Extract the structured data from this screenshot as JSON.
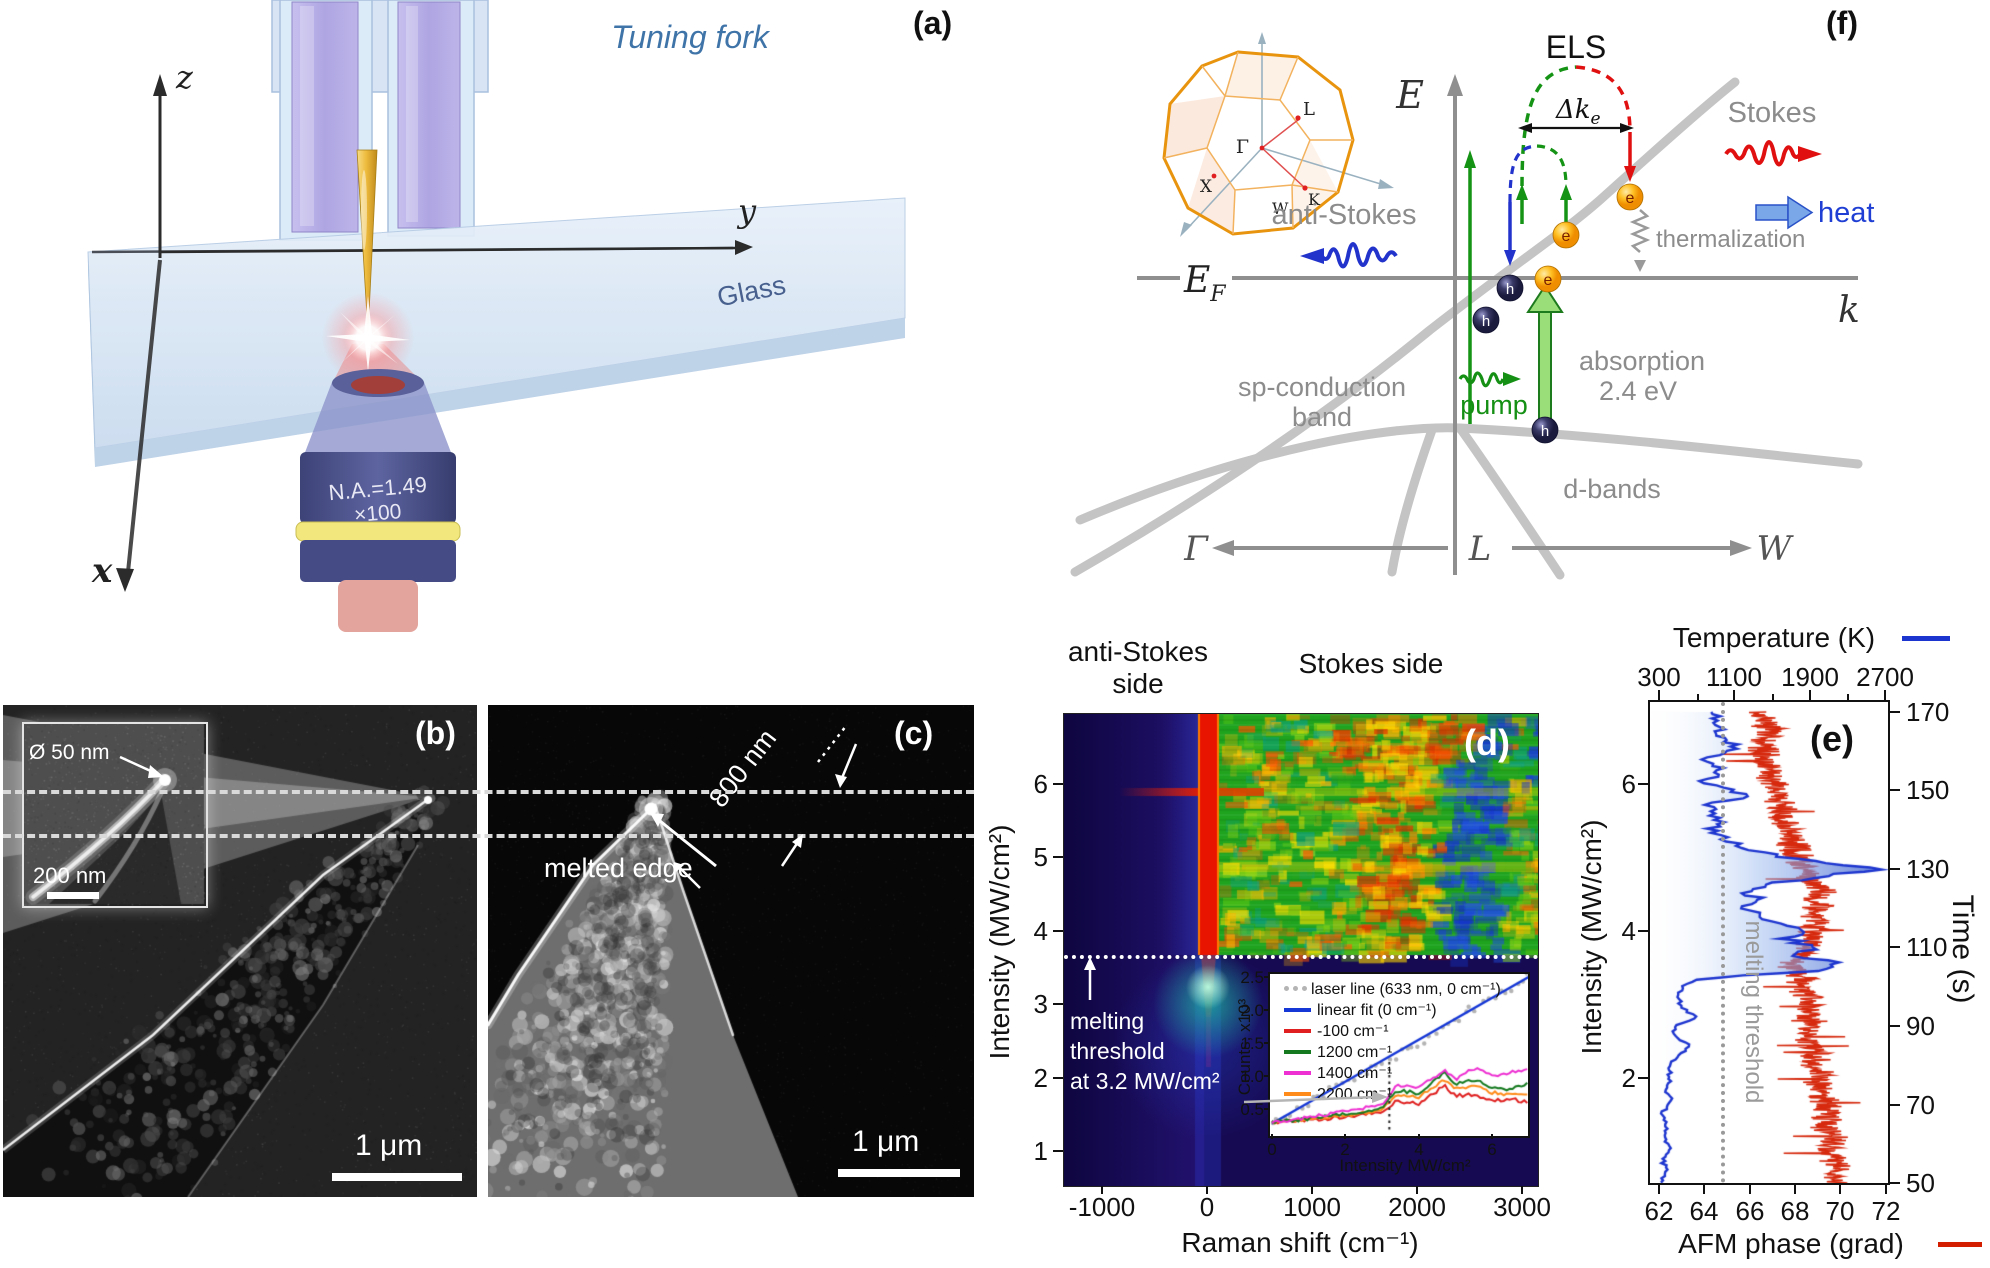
{
  "figure": {
    "panel_labels": {
      "a": "(a)",
      "b": "(b)",
      "c": "(c)",
      "d": "(d)",
      "e": "(e)",
      "f": "(f)"
    },
    "panel_a": {
      "tuning_fork": "Tuning fork",
      "glass": "Glass",
      "objective_na": "N.A.=1.49",
      "objective_mag": "×100",
      "axis_z": "z",
      "axis_y": "y",
      "axis_x": "x"
    },
    "panel_b": {
      "tip_diameter": "Ø 50 nm",
      "inset_scale": "200 nm",
      "scale": "1 μm"
    },
    "panel_c": {
      "width_label": "800 nm",
      "melted_edge": "melted edge",
      "scale": "1 μm"
    },
    "panel_d": {
      "anti_stokes_line1": "anti-Stokes",
      "anti_stokes_line2": "side",
      "stokes": "Stokes side",
      "ylabel": "Intensity (MW/cm²)",
      "xlabel": "Raman shift (cm⁻¹)",
      "threshold_line1": "melting",
      "threshold_line2": "threshold",
      "threshold_line3": "at 3.2 MW/cm²",
      "x_ticks": [
        "-1000",
        "0",
        "1000",
        "2000",
        "3000"
      ],
      "y_ticks": [
        "6",
        "5",
        "4",
        "3",
        "2",
        "1"
      ],
      "inset": {
        "ylabel": "Counts, x10³",
        "xlabel": "Intensity MW/cm²",
        "y_ticks": [
          "2.5",
          "2.0",
          "1.5",
          "1.0",
          "0.5"
        ],
        "x_ticks": [
          "0",
          "2",
          "4",
          "6"
        ],
        "legend": [
          {
            "label": "laser line (633 nm, 0 cm⁻¹)",
            "color": "#b4b4b4",
            "style": "dots"
          },
          {
            "label": "linear fit (0 cm⁻¹)",
            "color": "#1537d6",
            "style": "line"
          },
          {
            "label": "-100 cm⁻¹",
            "color": "#e02020",
            "style": "line"
          },
          {
            "label": "1200 cm⁻¹",
            "color": "#157a1f",
            "style": "line"
          },
          {
            "label": "1400 cm⁻¹",
            "color": "#ee2fd2",
            "style": "line"
          },
          {
            "label": "2200 cm⁻¹",
            "color": "#ff8c1a",
            "style": "line"
          }
        ]
      }
    },
    "panel_e": {
      "top_label": "Temperature (K)",
      "top_ticks": [
        "300",
        "1100",
        "1900",
        "2700"
      ],
      "left_label": "Intensity (MW/cm²)",
      "left_ticks": [
        "6",
        "4",
        "2"
      ],
      "right_label": "Time (s)",
      "right_ticks": [
        "170",
        "150",
        "130",
        "110",
        "90",
        "70",
        "50"
      ],
      "bottom_label": "AFM phase (grad)",
      "bottom_ticks": [
        "62",
        "64",
        "66",
        "68",
        "70",
        "72"
      ],
      "threshold": "melting threshold",
      "temp_color": "#1d35cf",
      "phase_color": "#d41e00"
    },
    "panel_f": {
      "els": "ELS",
      "dk_main": "Δk",
      "dk_sub": "e",
      "stokes": "Stokes",
      "anti_stokes": "anti-Stokes",
      "heat": "heat",
      "thermalization": "thermalization",
      "e_axis": "E",
      "ef_main": "E",
      "ef_sub": "F",
      "k_axis": "k",
      "sp_band_1": "sp-conduction",
      "sp_band_2": "band",
      "pump": "pump",
      "absorption_1": "absorption",
      "absorption_2": "2.4 eV",
      "d_bands": "d-bands",
      "gamma": "Γ",
      "l": "L",
      "w": "W",
      "bz": {
        "gamma": "Γ",
        "l": "L",
        "x": "X",
        "w": "W",
        "k": "K"
      },
      "e_ball": "e",
      "h_ball": "h"
    }
  },
  "chart_data": [
    {
      "type": "heatmap",
      "name": "panel-d-raman-map",
      "xlabel": "Raman shift (cm⁻¹)",
      "ylabel": "Intensity (MW/cm²)",
      "xlim": [
        -1420,
        3140
      ],
      "ylim": [
        0.55,
        7.0
      ],
      "x_ticks": [
        -1000,
        0,
        1000,
        2000,
        3000
      ],
      "y_ticks": [
        1,
        2,
        3,
        4,
        5,
        6
      ],
      "annotations": {
        "laser_line_cm": 0,
        "melting_threshold_MW_cm2": 3.2
      },
      "legend_position": "none",
      "description": "TERS map: intense red laser line at 0 cm-1; above the 3.2 MW/cm2 melting threshold the Stokes side shows broad green/yellow hot-luminescence with strong red band near 1200-1600 cm-1; below threshold mostly dark indigo with a teal laser spot; anti-Stokes side dark with a narrow red flash near 4.7 MW/cm2."
    },
    {
      "type": "line",
      "name": "panel-d-inset",
      "xlabel": "Intensity MW/cm²",
      "ylabel": "Counts, x10³",
      "xlim": [
        0,
        7
      ],
      "ylim": [
        0.25,
        2.55
      ],
      "threshold_x": 3.2,
      "legend_position": "top-left",
      "series": [
        {
          "name": "laser line (633 nm, 0 cm⁻¹)",
          "style": "scatter",
          "color": "#b4b4b4",
          "x": [
            0,
            7
          ],
          "y": [
            0.28,
            2.5
          ]
        },
        {
          "name": "linear fit (0 cm⁻¹)",
          "style": "line",
          "color": "#1537d6",
          "x": [
            0,
            7
          ],
          "y": [
            0.28,
            2.5
          ]
        },
        {
          "name": "-100 cm⁻¹",
          "style": "line",
          "color": "#e02020",
          "x": [
            0,
            1,
            2,
            3,
            3.4,
            4,
            4.7,
            5,
            5.5,
            6,
            6.5,
            7
          ],
          "y": [
            0.3,
            0.33,
            0.38,
            0.45,
            0.62,
            0.58,
            0.85,
            0.7,
            0.72,
            0.62,
            0.65,
            0.6
          ]
        },
        {
          "name": "1200 cm⁻¹",
          "style": "line",
          "color": "#157a1f",
          "x": [
            0,
            1,
            2,
            3,
            3.4,
            4,
            4.7,
            5,
            5.5,
            6,
            6.5,
            7
          ],
          "y": [
            0.3,
            0.35,
            0.42,
            0.5,
            0.78,
            0.74,
            1.05,
            0.88,
            0.95,
            0.82,
            0.8,
            0.88
          ]
        },
        {
          "name": "1400 cm⁻¹",
          "style": "line",
          "color": "#ee2fd2",
          "x": [
            0,
            1,
            2,
            3,
            3.4,
            4,
            4.7,
            5,
            5.5,
            6,
            6.5,
            7
          ],
          "y": [
            0.3,
            0.37,
            0.46,
            0.56,
            0.86,
            0.82,
            1.08,
            0.95,
            1.12,
            1.0,
            1.05,
            1.12
          ]
        },
        {
          "name": "2200 cm⁻¹",
          "style": "line",
          "color": "#ff8c1a",
          "x": [
            0,
            1,
            2,
            3,
            3.4,
            4,
            4.7,
            5,
            5.5,
            6,
            6.5,
            7
          ],
          "y": [
            0.3,
            0.34,
            0.4,
            0.48,
            0.72,
            0.68,
            0.95,
            0.8,
            0.85,
            0.75,
            0.72,
            0.72
          ]
        }
      ]
    },
    {
      "type": "line",
      "name": "panel-e",
      "top_axis": {
        "label": "Temperature (K)",
        "lim": [
          300,
          2700
        ]
      },
      "bottom_axis": {
        "label": "AFM phase (grad)",
        "lim": [
          62,
          72
        ]
      },
      "right_axis": {
        "label": "Time (s)",
        "lim": [
          50,
          170
        ]
      },
      "left_axis": {
        "label": "Intensity (MW/cm²)",
        "ticks": [
          2,
          4,
          6
        ]
      },
      "threshold_phase_grad": 65,
      "series": [
        {
          "name": "Temperature (K)",
          "color": "#1d35cf",
          "t_s": [
            50,
            53,
            56,
            59,
            62,
            65,
            68,
            71,
            74,
            77,
            80,
            83,
            85,
            88,
            90,
            92,
            94,
            96,
            98,
            100,
            102,
            104,
            106,
            108,
            110,
            112,
            114,
            116,
            118,
            120,
            122,
            124,
            126,
            128,
            130,
            132,
            134,
            136,
            138,
            140,
            143,
            146,
            149,
            152,
            155,
            158,
            161,
            164,
            167,
            170
          ],
          "K": [
            330,
            370,
            340,
            420,
            350,
            380,
            340,
            440,
            370,
            420,
            390,
            540,
            620,
            440,
            480,
            700,
            580,
            520,
            490,
            560,
            700,
            1900,
            2250,
            1750,
            1950,
            1650,
            1850,
            1500,
            1400,
            1150,
            1400,
            1200,
            1450,
            2050,
            2600,
            1900,
            1450,
            1150,
            1000,
            880,
            950,
            820,
            1250,
            760,
            960,
            820,
            1150,
            880,
            950,
            900
          ]
        },
        {
          "name": "AFM phase (grad)",
          "color": "#d41e00",
          "noise_amp_grad": 0.8,
          "t_s": [
            50,
            60,
            70,
            80,
            90,
            100,
            105,
            110,
            115,
            120,
            125,
            130,
            135,
            140,
            145,
            150,
            155,
            160,
            165,
            170
          ],
          "grad": [
            69.8,
            69.6,
            69.3,
            68.9,
            68.6,
            68.4,
            67.9,
            68.5,
            68.8,
            69.0,
            69.1,
            68.3,
            68.0,
            67.7,
            67.4,
            67.1,
            66.8,
            66.6,
            66.9,
            66.6
          ]
        }
      ]
    }
  ]
}
